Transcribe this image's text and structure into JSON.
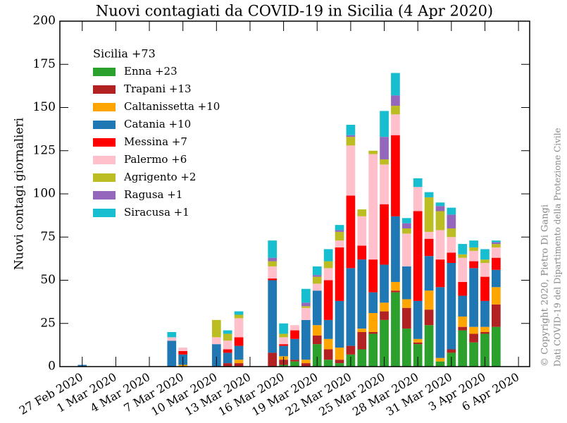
{
  "chart_data": {
    "type": "stacked_bar",
    "title": "Nuovi contagiati da COVID-19 in Sicilia (4 Apr 2020)",
    "ylabel": "Nuovi contagi giornalieri",
    "legend_title": "Sicilia  +73",
    "legend_loc": "upper left",
    "annotations": [
      "© Copyright 2020, Pietro Di Gangi",
      "Dati COVID-19 del Dipartimento della Protezione Civile"
    ],
    "x": [
      "2020-02-25",
      "2020-02-26",
      "2020-02-27",
      "2020-02-28",
      "2020-02-29",
      "2020-03-01",
      "2020-03-02",
      "2020-03-03",
      "2020-03-04",
      "2020-03-05",
      "2020-03-06",
      "2020-03-07",
      "2020-03-08",
      "2020-03-09",
      "2020-03-10",
      "2020-03-11",
      "2020-03-12",
      "2020-03-13",
      "2020-03-14",
      "2020-03-15",
      "2020-03-16",
      "2020-03-17",
      "2020-03-18",
      "2020-03-19",
      "2020-03-20",
      "2020-03-21",
      "2020-03-22",
      "2020-03-23",
      "2020-03-24",
      "2020-03-25",
      "2020-03-26",
      "2020-03-27",
      "2020-03-28",
      "2020-03-29",
      "2020-03-30",
      "2020-03-31",
      "2020-04-01",
      "2020-04-02",
      "2020-04-03",
      "2020-04-04"
    ],
    "xlim": [
      "2020-02-25",
      "2020-04-07"
    ],
    "xticks": [
      {
        "value": "2020-02-27",
        "label": "27 Feb 2020"
      },
      {
        "value": "2020-03-01",
        "label": "1 Mar 2020"
      },
      {
        "value": "2020-03-04",
        "label": "4 Mar 2020"
      },
      {
        "value": "2020-03-07",
        "label": "7 Mar 2020"
      },
      {
        "value": "2020-03-10",
        "label": "10 Mar 2020"
      },
      {
        "value": "2020-03-13",
        "label": "13 Mar 2020"
      },
      {
        "value": "2020-03-16",
        "label": "16 Mar 2020"
      },
      {
        "value": "2020-03-19",
        "label": "19 Mar 2020"
      },
      {
        "value": "2020-03-22",
        "label": "22 Mar 2020"
      },
      {
        "value": "2020-03-25",
        "label": "25 Mar 2020"
      },
      {
        "value": "2020-03-28",
        "label": "28 Mar 2020"
      },
      {
        "value": "2020-03-31",
        "label": "31 Mar 2020"
      },
      {
        "value": "2020-04-03",
        "label": "3 Apr 2020"
      },
      {
        "value": "2020-04-06",
        "label": "6 Apr 2020"
      }
    ],
    "ylim": [
      0,
      200
    ],
    "yticks": [
      0,
      25,
      50,
      75,
      100,
      125,
      150,
      175,
      200
    ],
    "series": [
      {
        "name": "Enna  +23",
        "color": "#2ca02c",
        "values": [
          0,
          0,
          0,
          0,
          0,
          0,
          0,
          0,
          0,
          0,
          0,
          0,
          0,
          0,
          0,
          0,
          0,
          0,
          0,
          0,
          1,
          3,
          0,
          13,
          4,
          2,
          7,
          10,
          19,
          27,
          43,
          22,
          13,
          24,
          3,
          8,
          21,
          14,
          19,
          23
        ]
      },
      {
        "name": "Trapani  +13",
        "color": "#b22222",
        "values": [
          0,
          0,
          0,
          0,
          0,
          0,
          0,
          0,
          0,
          0,
          0,
          0,
          0,
          0,
          0,
          2,
          2,
          0,
          0,
          8,
          3,
          1,
          2,
          5,
          6,
          2,
          5,
          10,
          1,
          5,
          1,
          12,
          1,
          9,
          0,
          2,
          2,
          5,
          1,
          13
        ]
      },
      {
        "name": "Caltanissetta  +10",
        "color": "#ffa500",
        "values": [
          0,
          0,
          0,
          0,
          0,
          0,
          0,
          0,
          0,
          0,
          0,
          1,
          0,
          0,
          0,
          0,
          2,
          0,
          0,
          0,
          2,
          0,
          2,
          6,
          6,
          7,
          0,
          2,
          11,
          5,
          5,
          5,
          2,
          11,
          2,
          0,
          6,
          4,
          3,
          10
        ]
      },
      {
        "name": "Catania  +10",
        "color": "#1f77b4",
        "values": [
          0,
          0,
          1,
          0,
          0,
          0,
          0,
          0,
          0,
          0,
          15,
          6,
          0,
          0,
          13,
          6,
          8,
          0,
          0,
          42,
          6,
          12,
          23,
          20,
          11,
          27,
          45,
          40,
          12,
          22,
          38,
          19,
          22,
          20,
          41,
          50,
          12,
          34,
          15,
          10
        ]
      },
      {
        "name": "Messina  +7",
        "color": "#ff0000",
        "values": [
          0,
          0,
          0,
          0,
          0,
          0,
          0,
          0,
          0,
          0,
          0,
          2,
          0,
          0,
          0,
          2,
          5,
          0,
          0,
          1,
          1,
          5,
          0,
          0,
          23,
          31,
          42,
          8,
          19,
          35,
          47,
          0,
          52,
          10,
          16,
          6,
          8,
          4,
          14,
          7
        ]
      },
      {
        "name": "Palermo  +6",
        "color": "#ffc0cb",
        "values": [
          0,
          0,
          0,
          0,
          0,
          0,
          0,
          0,
          0,
          0,
          2,
          2,
          0,
          0,
          4,
          5,
          11,
          0,
          0,
          7,
          4,
          3,
          7,
          4,
          7,
          4,
          29,
          17,
          61,
          23,
          12,
          19,
          14,
          4,
          17,
          9,
          14,
          6,
          8,
          6
        ]
      },
      {
        "name": "Agrigento  +2",
        "color": "#bcbd22",
        "values": [
          0,
          0,
          0,
          0,
          0,
          0,
          0,
          0,
          0,
          0,
          0,
          0,
          0,
          0,
          10,
          4,
          2,
          0,
          0,
          3,
          2,
          0,
          1,
          4,
          4,
          5,
          5,
          4,
          2,
          3,
          5,
          3,
          0,
          20,
          11,
          5,
          2,
          2,
          2,
          2
        ]
      },
      {
        "name": "Ragusa  +1",
        "color": "#9467bd",
        "values": [
          0,
          0,
          0,
          0,
          0,
          0,
          0,
          0,
          0,
          0,
          0,
          0,
          0,
          0,
          0,
          0,
          0,
          0,
          0,
          2,
          0,
          0,
          2,
          1,
          0,
          1,
          1,
          0,
          0,
          13,
          6,
          3,
          0,
          0,
          3,
          8,
          0,
          0,
          0,
          1
        ]
      },
      {
        "name": "Siracusa  +1",
        "color": "#17becf",
        "values": [
          0,
          0,
          0,
          0,
          0,
          0,
          0,
          0,
          0,
          0,
          3,
          0,
          0,
          0,
          0,
          2,
          2,
          0,
          0,
          10,
          6,
          0,
          8,
          5,
          7,
          3,
          6,
          0,
          0,
          15,
          13,
          3,
          5,
          3,
          2,
          4,
          6,
          4,
          6,
          1
        ]
      }
    ]
  }
}
